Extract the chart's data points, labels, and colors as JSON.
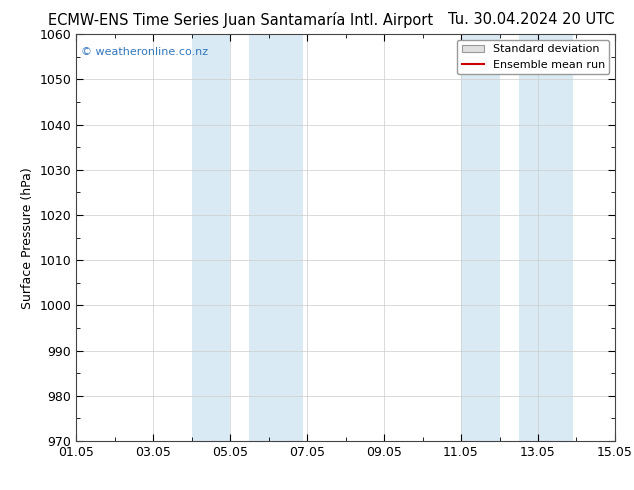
{
  "title_left": "ECMW-ENS Time Series Juan Santamaría Intl. Airport",
  "title_right": "Tu. 30.04.2024 20 UTC",
  "ylabel": "Surface Pressure (hPa)",
  "ylim": [
    970,
    1060
  ],
  "yticks": [
    970,
    980,
    990,
    1000,
    1010,
    1020,
    1030,
    1040,
    1050,
    1060
  ],
  "xlim_start": 0,
  "xlim_end": 14,
  "xtick_labels": [
    "01.05",
    "03.05",
    "05.05",
    "07.05",
    "09.05",
    "11.05",
    "13.05",
    "15.05"
  ],
  "xtick_positions": [
    0,
    2,
    4,
    6,
    8,
    10,
    12,
    14
  ],
  "shaded_bands": [
    {
      "x_start": 3.0,
      "x_end": 4.0,
      "color": "#daeaf5"
    },
    {
      "x_start": 4.5,
      "x_end": 5.9,
      "color": "#daeaf5"
    },
    {
      "x_start": 10.0,
      "x_end": 11.0,
      "color": "#daeaf5"
    },
    {
      "x_start": 11.5,
      "x_end": 12.9,
      "color": "#daeaf5"
    }
  ],
  "watermark_text": "© weatheronline.co.nz",
  "watermark_color": "#3377bb",
  "legend_sd_facecolor": "#e0e0e0",
  "legend_sd_edgecolor": "#999999",
  "legend_mean_color": "#cc0000",
  "bg_color": "#ffffff",
  "plot_bg_color": "#ffffff",
  "title_fontsize": 10.5,
  "ylabel_fontsize": 9,
  "tick_fontsize": 9,
  "grid_color": "#cccccc",
  "spine_color": "#444444"
}
